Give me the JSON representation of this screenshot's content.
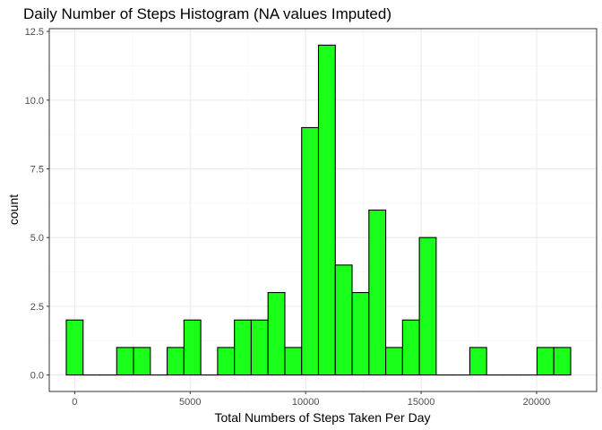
{
  "chart_data": {
    "type": "bar",
    "title": "Daily Number of Steps Histogram (NA values Imputed)",
    "xlabel": "Total Numbers of Steps Taken Per Day",
    "ylabel": "count",
    "xlim": [
      -1100,
      22600
    ],
    "ylim": [
      -0.6,
      12.6
    ],
    "x_ticks": [
      0,
      5000,
      10000,
      15000,
      20000
    ],
    "x_tick_labels": [
      "0",
      "5000",
      "10000",
      "15000",
      "20000"
    ],
    "y_ticks": [
      0,
      2.5,
      5,
      7.5,
      10,
      12.5
    ],
    "y_tick_labels": [
      "0.0",
      "2.5",
      "5.0",
      "7.5",
      "10.0",
      "12.5"
    ],
    "bin_start": -364,
    "bin_width": 728,
    "values": [
      2,
      0,
      0,
      1,
      1,
      0,
      1,
      2,
      0,
      1,
      2,
      2,
      3,
      1,
      9,
      12,
      4,
      3,
      6,
      1,
      2,
      5,
      0,
      0,
      1,
      0,
      0,
      0,
      1,
      1
    ],
    "bar_fill": "#1aff1a",
    "bar_stroke": "#000000",
    "grid": true,
    "panel_border": "#333333",
    "grid_major_color": "#ebebeb",
    "grid_minor_color": "#f5f5f5"
  }
}
